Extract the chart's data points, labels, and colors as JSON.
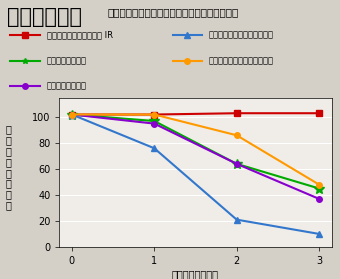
{
  "title_large": "野外暴露試験",
  "title_small": "宮古島野外暴露試験（溶剤系フッ素との比較）",
  "xlabel": "暴露時間（時間）",
  "ylabel": "光\n沢\n保\n持\n率\n（\n％\n）",
  "x": [
    0,
    1,
    2,
    3
  ],
  "series": [
    {
      "label": "スーパーセランマイルド IR",
      "color": "#cc0000",
      "marker": "s",
      "markersize": 4,
      "y": [
        102,
        102,
        103,
        103
      ]
    },
    {
      "label": "Ａ社溶剤系フッ素",
      "color": "#00aa00",
      "marker": "*",
      "markersize": 7,
      "y": [
        102,
        97,
        64,
        45
      ]
    },
    {
      "label": "Ｂ社溶剤系フッ素",
      "color": "#8800cc",
      "marker": "o",
      "markersize": 4,
      "y": [
        102,
        95,
        64,
        37
      ]
    },
    {
      "label": "Ａ社溶剤系フッ素（原溶剤）",
      "color": "#3377cc",
      "marker": "^",
      "markersize": 5,
      "y": [
        102,
        76,
        21,
        10
      ]
    },
    {
      "label": "Ｄ社溶剤系フッ素（原溶剤）",
      "color": "#ff9900",
      "marker": "o",
      "markersize": 4,
      "y": [
        102,
        102,
        86,
        48
      ]
    }
  ],
  "ylim": [
    0,
    115
  ],
  "yticks": [
    0,
    20,
    40,
    60,
    80,
    100
  ],
  "xlim": [
    -0.15,
    3.15
  ],
  "xticks": [
    0,
    1,
    2,
    3
  ],
  "background_color": "#d4d0c8",
  "plot_bg_color": "#f0ede8",
  "grid_color": "#ffffff",
  "legend_entries": [
    {
      "col": 0,
      "row": 0,
      "series_idx": 0
    },
    {
      "col": 1,
      "row": 0,
      "series_idx": 3
    },
    {
      "col": 0,
      "row": 1,
      "series_idx": 1
    },
    {
      "col": 1,
      "row": 1,
      "series_idx": 4
    },
    {
      "col": 0,
      "row": 2,
      "series_idx": 2
    }
  ],
  "title_large_fontsize": 15,
  "title_small_fontsize": 7.5,
  "tick_fontsize": 7,
  "label_fontsize": 7,
  "legend_fontsize": 6
}
